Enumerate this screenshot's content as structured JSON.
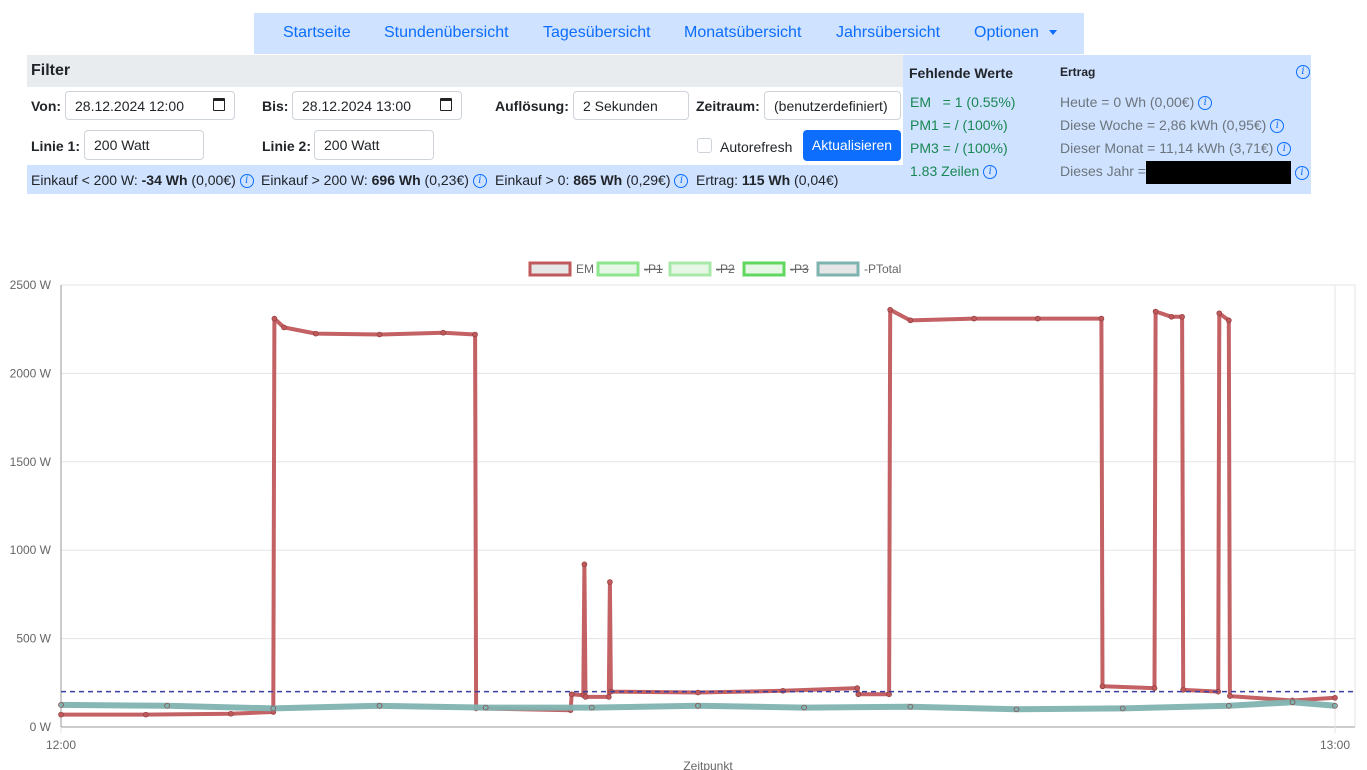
{
  "nav": {
    "items": [
      "Startseite",
      "Stundenübersicht",
      "Tagesübersicht",
      "Monatsübersicht",
      "Jahrsübersicht"
    ],
    "options_label": "Optionen"
  },
  "filter": {
    "title": "Filter",
    "von_label": "Von:",
    "von_value": "28.12.2024 12:00",
    "bis_label": "Bis:",
    "bis_value": "28.12.2024 13:00",
    "aufloesung_label": "Auflösung:",
    "aufloesung_value": "2 Sekunden",
    "zeitraum_label": "Zeitraum:",
    "zeitraum_value": "(benutzerdefiniert)",
    "linie1_label": "Linie 1:",
    "linie1_value": "200 Watt",
    "linie2_label": "Linie 2:",
    "linie2_value": "200 Watt",
    "autorefresh_label": "Autorefresh",
    "aktualisieren_label": "Aktualisieren"
  },
  "summary": {
    "einkauf_lt_label": "Einkauf < 200 W:",
    "einkauf_lt_value": "-34 Wh",
    "einkauf_lt_cost": "(0,00€)",
    "einkauf_gt_label": "Einkauf > 200 W:",
    "einkauf_gt_value": "696 Wh",
    "einkauf_gt_cost": "(0,23€)",
    "einkauf_0_label": "Einkauf > 0:",
    "einkauf_0_value": "865 Wh",
    "einkauf_0_cost": "(0,29€)",
    "ertrag_label": "Ertrag:",
    "ertrag_value": "115 Wh",
    "ertrag_cost": "(0,04€)"
  },
  "side": {
    "missing_title": "Fehlende Werte",
    "ertrag_title": "Ertrag",
    "missing": [
      "EM   = 1 (0.55%)",
      "PM1 = / (100%)",
      "PM3 = / (100%)",
      "1.83 Zeilen"
    ],
    "ertrag": [
      "Heute = 0 Wh (0,00€)",
      "Diese Woche = 2,86 kWh (0,95€)",
      "Dieser Monat = 11,14 kWh (3,71€)",
      "Dieses Jahr ="
    ]
  },
  "chart_data": {
    "type": "line",
    "xlabel": "Zeitpunkt",
    "ylabel": "",
    "x_ticks": [
      "12:00",
      "13:00"
    ],
    "y_ticks": [
      "0 W",
      "500 W",
      "1000 W",
      "1500 W",
      "2000 W",
      "2500 W"
    ],
    "ylim": [
      0,
      2500
    ],
    "xlim_minutes": [
      0,
      60
    ],
    "legend_position": "top",
    "grid": true,
    "threshold": {
      "value": 200,
      "color": "#3b3fa0",
      "style": "dashed"
    },
    "series": [
      {
        "name": "EM",
        "color": "#c0595c",
        "hidden": false,
        "points": [
          [
            0,
            70
          ],
          [
            4,
            70
          ],
          [
            8,
            75
          ],
          [
            10,
            85
          ],
          [
            10.05,
            2310
          ],
          [
            10.5,
            2260
          ],
          [
            12,
            2225
          ],
          [
            15,
            2220
          ],
          [
            18,
            2230
          ],
          [
            19.5,
            2220
          ],
          [
            19.55,
            105
          ],
          [
            24,
            95
          ],
          [
            24.05,
            185
          ],
          [
            24.6,
            180
          ],
          [
            24.65,
            920
          ],
          [
            24.7,
            170
          ],
          [
            25.8,
            170
          ],
          [
            25.85,
            820
          ],
          [
            25.9,
            200
          ],
          [
            30,
            195
          ],
          [
            34,
            205
          ],
          [
            37.5,
            220
          ],
          [
            37.55,
            185
          ],
          [
            39,
            185
          ],
          [
            39.05,
            2360
          ],
          [
            40,
            2300
          ],
          [
            43,
            2310
          ],
          [
            46,
            2310
          ],
          [
            49,
            2310
          ],
          [
            49.05,
            230
          ],
          [
            51.5,
            220
          ],
          [
            51.55,
            2350
          ],
          [
            52.3,
            2320
          ],
          [
            52.8,
            2320
          ],
          [
            52.85,
            210
          ],
          [
            54.5,
            200
          ],
          [
            54.55,
            2340
          ],
          [
            55,
            2300
          ],
          [
            55.05,
            175
          ],
          [
            58,
            150
          ],
          [
            60,
            165
          ]
        ]
      },
      {
        "name": "-P1",
        "color": "#8de58d",
        "hidden": true,
        "points": []
      },
      {
        "name": "-P2",
        "color": "#a8e8a8",
        "hidden": true,
        "points": []
      },
      {
        "name": "-P3",
        "color": "#60d860",
        "hidden": true,
        "points": []
      },
      {
        "name": "-PTotal",
        "color": "#7fb3b0",
        "hidden": false,
        "points": [
          [
            0,
            125
          ],
          [
            5,
            120
          ],
          [
            10,
            105
          ],
          [
            15,
            120
          ],
          [
            20,
            110
          ],
          [
            25,
            110
          ],
          [
            30,
            120
          ],
          [
            35,
            110
          ],
          [
            40,
            115
          ],
          [
            45,
            100
          ],
          [
            50,
            105
          ],
          [
            55,
            120
          ],
          [
            58,
            140
          ],
          [
            60,
            120
          ]
        ]
      }
    ]
  }
}
